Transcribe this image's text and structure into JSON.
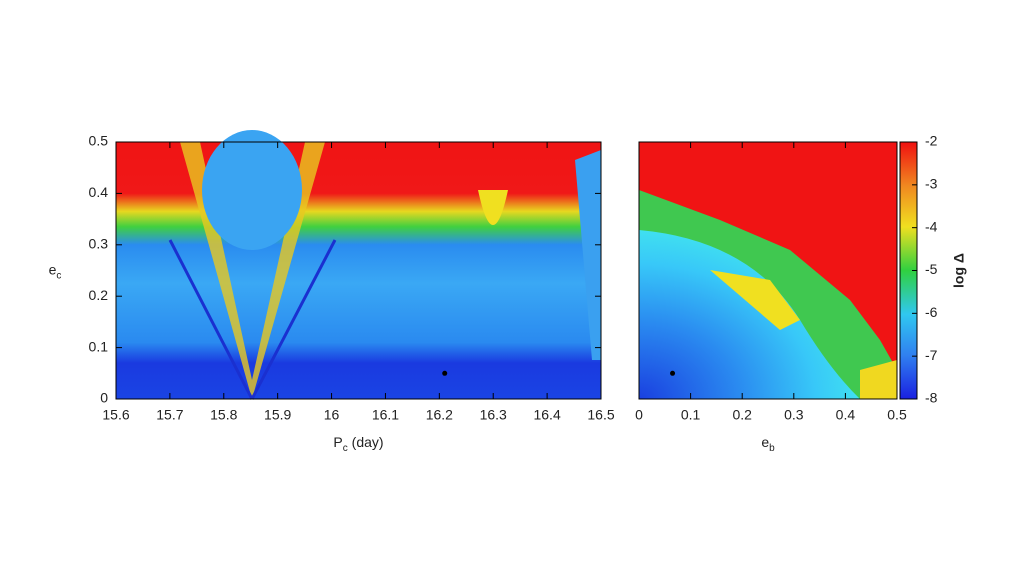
{
  "chart_data": [
    {
      "type": "heatmap",
      "x_label": [
        "P",
        "c",
        " (day)"
      ],
      "y_label": [
        "e",
        "c"
      ],
      "xlim": [
        15.6,
        16.5
      ],
      "ylim": [
        0,
        0.5
      ],
      "xticks": [
        15.6,
        15.7,
        15.8,
        15.9,
        16,
        16.1,
        16.2,
        16.3,
        16.4,
        16.5
      ],
      "yticks": [
        0,
        0.1,
        0.2,
        0.3,
        0.4,
        0.5
      ],
      "markers": {
        "x": [
          16.21
        ],
        "y": [
          0.05
        ]
      }
    },
    {
      "type": "heatmap",
      "x_label": [
        "e",
        "b"
      ],
      "xlim": [
        0,
        0.5
      ],
      "ylim": [
        0,
        0.5
      ],
      "xticks": [
        0,
        0.1,
        0.2,
        0.3,
        0.4,
        0.5
      ],
      "markers": {
        "x": [
          0.065
        ],
        "y": [
          0.05
        ]
      },
      "colorbar": {
        "label": "log Δ",
        "lim": [
          -8,
          -2
        ],
        "ticks": [
          -8,
          -7,
          -6,
          -5,
          -4,
          -3,
          -2
        ]
      }
    }
  ]
}
